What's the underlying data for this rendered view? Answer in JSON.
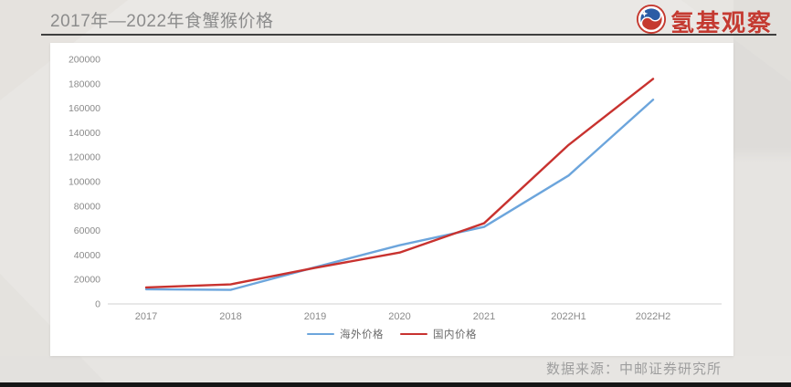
{
  "header": {
    "title": "2017年—2022年食蟹猴价格",
    "logo_text": "氢基观察",
    "logo_color": "#c43a31"
  },
  "footer": {
    "source": "数据来源：中邮证券研究所"
  },
  "chart_data": {
    "type": "line",
    "categories": [
      "2017",
      "2018",
      "2019",
      "2020",
      "2021",
      "2022H1",
      "2022H2"
    ],
    "series": [
      {
        "name": "海外价格",
        "color": "#6CA5DC",
        "values": [
          12000,
          11500,
          30000,
          48000,
          63000,
          105000,
          167000
        ]
      },
      {
        "name": "国内价格",
        "color": "#C8322F",
        "values": [
          13500,
          16000,
          29500,
          42000,
          66000,
          130000,
          184000
        ]
      }
    ],
    "title": "",
    "xlabel": "",
    "ylabel": "",
    "ylim": [
      0,
      200000
    ],
    "ytick_step": 20000,
    "legend_position": "bottom",
    "grid": false
  }
}
